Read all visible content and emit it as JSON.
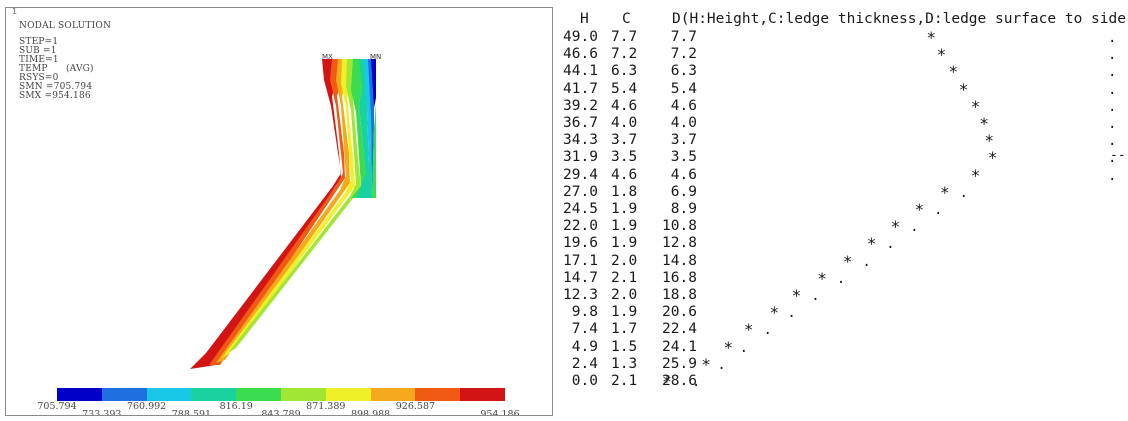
{
  "ansys": {
    "window_index": "1",
    "title": "NODAL SOLUTION",
    "info_lines": [
      "STEP=1",
      "SUB =1",
      "TIME=1",
      "TEMP      (AVG)",
      "RSYS=0",
      "SMN =705.794",
      "SMX =954.186"
    ],
    "node_tags": [
      "MX",
      "MN"
    ],
    "colorbar": {
      "colors": [
        "#0000c8",
        "#1f6fe0",
        "#19c8e6",
        "#19d2a0",
        "#3cdc50",
        "#a0e632",
        "#f0f028",
        "#f5aa1e",
        "#f05a14",
        "#d21414"
      ],
      "labels_top": [
        "705.794",
        "760.992",
        "816.19",
        "871.389",
        "926.587"
      ],
      "labels_bottom": [
        "733.393",
        "788.591",
        "843.789",
        "898.988",
        "954.186"
      ]
    }
  },
  "table": {
    "headers": {
      "H": "H",
      "C": "C",
      "D": "D(H:Height,C:ledge thickness,D:ledge surface to side)"
    },
    "rows": [
      {
        "H": "49.0",
        "C": "7.7",
        "D": "7.7"
      },
      {
        "H": "46.6",
        "C": "7.2",
        "D": "7.2"
      },
      {
        "H": "44.1",
        "C": "6.3",
        "D": "6.3"
      },
      {
        "H": "41.7",
        "C": "5.4",
        "D": "5.4"
      },
      {
        "H": "39.2",
        "C": "4.6",
        "D": "4.6"
      },
      {
        "H": "36.7",
        "C": "4.0",
        "D": "4.0"
      },
      {
        "H": "34.3",
        "C": "3.7",
        "D": "3.7"
      },
      {
        "H": "31.9",
        "C": "3.5",
        "D": "3.5"
      },
      {
        "H": "29.4",
        "C": "4.6",
        "D": "4.6"
      },
      {
        "H": "27.0",
        "C": "1.8",
        "D": "6.9"
      },
      {
        "H": "24.5",
        "C": "1.9",
        "D": "8.9"
      },
      {
        "H": "22.0",
        "C": "1.9",
        "D": "10.8"
      },
      {
        "H": "19.6",
        "C": "1.9",
        "D": "12.8"
      },
      {
        "H": "17.1",
        "C": "2.0",
        "D": "14.8"
      },
      {
        "H": "14.7",
        "C": "2.1",
        "D": "16.8"
      },
      {
        "H": "12.3",
        "C": "2.0",
        "D": "18.8"
      },
      {
        "H": "9.8",
        "C": "1.9",
        "D": "20.6"
      },
      {
        "H": "7.4",
        "C": "1.7",
        "D": "22.4"
      },
      {
        "H": "4.9",
        "C": "1.5",
        "D": "24.1"
      },
      {
        "H": "2.4",
        "C": "1.3",
        "D": "25.9"
      },
      {
        "H": "0.0",
        "C": "2.1",
        "D": "28.6"
      }
    ],
    "plot": {
      "star_symbol": "*",
      "dot_symbol": ".",
      "dash_symbol": "--",
      "star_positions": [
        0.42,
        0.36,
        0.29,
        0.23,
        0.16,
        0.11,
        0.08,
        0.06,
        0.16,
        0.34,
        0.49,
        0.63,
        0.77,
        0.91,
        1.06,
        1.21,
        1.34,
        1.49,
        1.61,
        1.74,
        1.97
      ],
      "dot_positions": [
        0.0,
        0.0,
        0.0,
        0.0,
        0.0,
        0.0,
        0.0,
        0.0,
        0.0,
        0.46,
        0.61,
        0.75,
        0.89,
        1.03,
        1.18,
        1.33,
        1.47,
        1.61,
        1.75,
        1.88,
        2.03
      ]
    }
  }
}
